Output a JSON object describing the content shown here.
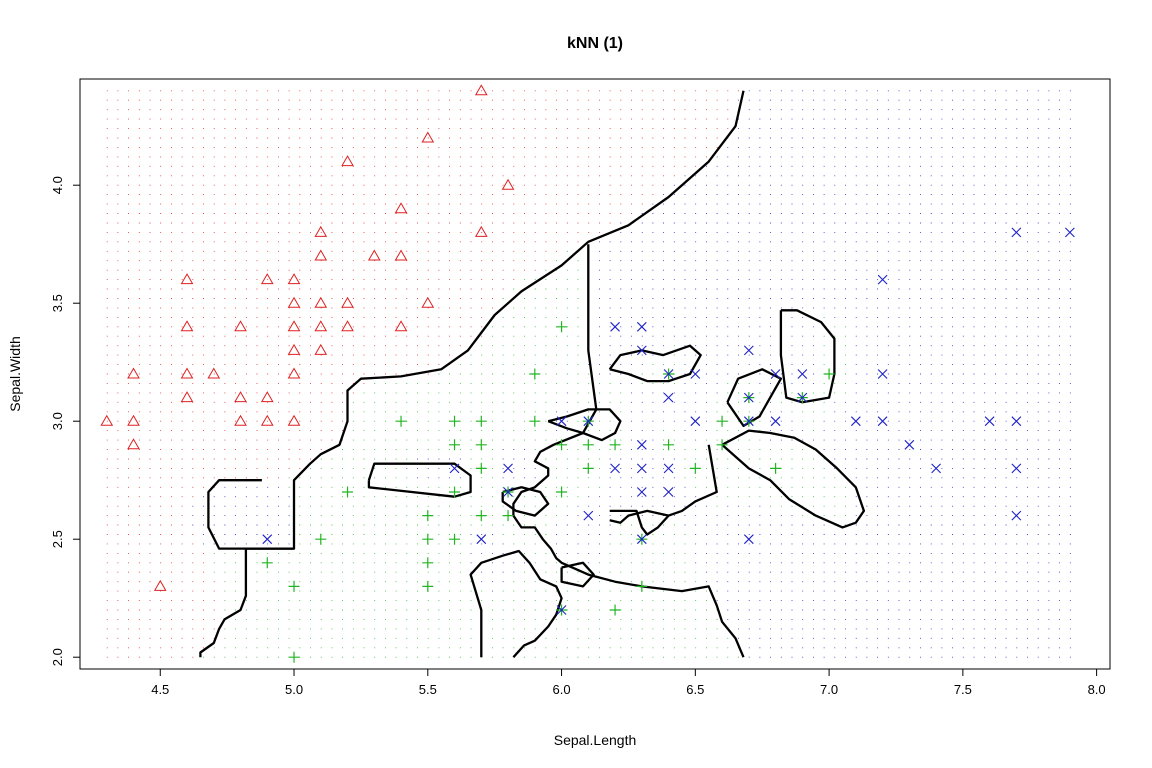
{
  "chart_data": {
    "type": "scatter",
    "title": "kNN (1)",
    "xlabel": "Sepal.Length",
    "ylabel": "Sepal.Width",
    "xlim": [
      4.2,
      8.05
    ],
    "ylim": [
      1.95,
      4.45
    ],
    "xticks": [
      "4.5",
      "5.0",
      "5.5",
      "6.0",
      "6.5",
      "7.0",
      "7.5",
      "8.0"
    ],
    "yticks": [
      "2.0",
      "2.5",
      "3.0",
      "3.5",
      "4.0"
    ],
    "grid": {
      "x": [
        4.3,
        7.9
      ],
      "y": [
        2.0,
        4.4
      ],
      "step": 0.04
    },
    "markers": {
      "triangle": {
        "color": "#DF2020"
      },
      "plus": {
        "color": "#22B522"
      },
      "cross": {
        "color": "#1F22C9"
      }
    },
    "series": [
      {
        "marker": "triangle",
        "points": [
          [
            4.3,
            3.0
          ],
          [
            4.4,
            2.9
          ],
          [
            4.4,
            3.0
          ],
          [
            4.4,
            3.2
          ],
          [
            4.5,
            2.3
          ],
          [
            4.6,
            3.1
          ],
          [
            4.6,
            3.2
          ],
          [
            4.6,
            3.4
          ],
          [
            4.6,
            3.6
          ],
          [
            4.7,
            3.2
          ],
          [
            4.8,
            3.0
          ],
          [
            4.8,
            3.1
          ],
          [
            4.8,
            3.4
          ],
          [
            4.9,
            3.0
          ],
          [
            4.9,
            3.1
          ],
          [
            4.9,
            3.6
          ],
          [
            5.0,
            3.0
          ],
          [
            5.0,
            3.2
          ],
          [
            5.0,
            3.3
          ],
          [
            5.0,
            3.4
          ],
          [
            5.0,
            3.5
          ],
          [
            5.0,
            3.6
          ],
          [
            5.1,
            3.3
          ],
          [
            5.1,
            3.4
          ],
          [
            5.1,
            3.5
          ],
          [
            5.1,
            3.7
          ],
          [
            5.1,
            3.8
          ],
          [
            5.2,
            3.4
          ],
          [
            5.2,
            3.5
          ],
          [
            5.2,
            4.1
          ],
          [
            5.3,
            3.7
          ],
          [
            5.4,
            3.4
          ],
          [
            5.4,
            3.7
          ],
          [
            5.4,
            3.9
          ],
          [
            5.5,
            3.5
          ],
          [
            5.5,
            4.2
          ],
          [
            5.7,
            3.8
          ],
          [
            5.7,
            4.4
          ],
          [
            5.8,
            4.0
          ]
        ]
      },
      {
        "marker": "plus",
        "points": [
          [
            4.9,
            2.4
          ],
          [
            5.0,
            2.0
          ],
          [
            5.0,
            2.3
          ],
          [
            5.1,
            2.5
          ],
          [
            5.2,
            2.7
          ],
          [
            5.4,
            3.0
          ],
          [
            5.5,
            2.3
          ],
          [
            5.5,
            2.4
          ],
          [
            5.5,
            2.5
          ],
          [
            5.5,
            2.6
          ],
          [
            5.6,
            2.5
          ],
          [
            5.6,
            2.7
          ],
          [
            5.6,
            2.9
          ],
          [
            5.6,
            3.0
          ],
          [
            5.7,
            2.6
          ],
          [
            5.7,
            2.8
          ],
          [
            5.7,
            2.9
          ],
          [
            5.7,
            3.0
          ],
          [
            5.8,
            2.6
          ],
          [
            5.8,
            2.7
          ],
          [
            5.9,
            3.0
          ],
          [
            5.9,
            3.2
          ],
          [
            6.0,
            2.2
          ],
          [
            6.0,
            2.7
          ],
          [
            6.0,
            2.9
          ],
          [
            6.0,
            3.4
          ],
          [
            6.1,
            2.8
          ],
          [
            6.1,
            2.9
          ],
          [
            6.1,
            3.0
          ],
          [
            6.2,
            2.2
          ],
          [
            6.2,
            2.9
          ],
          [
            6.3,
            2.3
          ],
          [
            6.3,
            2.5
          ],
          [
            6.4,
            2.9
          ],
          [
            6.4,
            3.2
          ],
          [
            6.5,
            2.8
          ],
          [
            6.6,
            2.9
          ],
          [
            6.6,
            3.0
          ],
          [
            6.7,
            3.0
          ],
          [
            6.7,
            3.1
          ],
          [
            6.8,
            2.8
          ],
          [
            6.9,
            3.1
          ],
          [
            7.0,
            3.2
          ]
        ]
      },
      {
        "marker": "cross",
        "points": [
          [
            4.9,
            2.5
          ],
          [
            5.6,
            2.8
          ],
          [
            5.7,
            2.5
          ],
          [
            5.8,
            2.7
          ],
          [
            5.8,
            2.8
          ],
          [
            6.0,
            2.2
          ],
          [
            6.0,
            3.0
          ],
          [
            6.1,
            2.6
          ],
          [
            6.1,
            3.0
          ],
          [
            6.2,
            2.8
          ],
          [
            6.2,
            3.4
          ],
          [
            6.3,
            2.5
          ],
          [
            6.3,
            2.7
          ],
          [
            6.3,
            2.8
          ],
          [
            6.3,
            2.9
          ],
          [
            6.3,
            3.3
          ],
          [
            6.3,
            3.4
          ],
          [
            6.4,
            2.7
          ],
          [
            6.4,
            2.8
          ],
          [
            6.4,
            3.1
          ],
          [
            6.4,
            3.2
          ],
          [
            6.5,
            3.0
          ],
          [
            6.5,
            3.2
          ],
          [
            6.7,
            2.5
          ],
          [
            6.7,
            3.0
          ],
          [
            6.7,
            3.1
          ],
          [
            6.7,
            3.3
          ],
          [
            6.8,
            3.0
          ],
          [
            6.8,
            3.2
          ],
          [
            6.9,
            3.1
          ],
          [
            6.9,
            3.2
          ],
          [
            7.1,
            3.0
          ],
          [
            7.2,
            3.0
          ],
          [
            7.2,
            3.2
          ],
          [
            7.2,
            3.6
          ],
          [
            7.3,
            2.9
          ],
          [
            7.4,
            2.8
          ],
          [
            7.6,
            3.0
          ],
          [
            7.7,
            2.6
          ],
          [
            7.7,
            2.8
          ],
          [
            7.7,
            3.0
          ],
          [
            7.7,
            3.8
          ],
          [
            7.9,
            3.8
          ]
        ]
      }
    ],
    "boundaries": [
      [
        [
          4.65,
          2.0
        ],
        [
          4.65,
          2.02
        ],
        [
          4.7,
          2.06
        ],
        [
          4.72,
          2.12
        ],
        [
          4.74,
          2.16
        ],
        [
          4.8,
          2.2
        ],
        [
          4.82,
          2.26
        ],
        [
          4.82,
          2.46
        ],
        [
          5.0,
          2.46
        ],
        [
          5.0,
          2.75
        ],
        [
          5.06,
          2.82
        ],
        [
          5.1,
          2.86
        ],
        [
          5.17,
          2.9
        ],
        [
          5.2,
          3.0
        ],
        [
          5.2,
          3.13
        ],
        [
          5.25,
          3.18
        ],
        [
          5.4,
          3.19
        ],
        [
          5.55,
          3.22
        ],
        [
          5.65,
          3.3
        ],
        [
          5.75,
          3.45
        ],
        [
          5.85,
          3.55
        ],
        [
          6.0,
          3.66
        ],
        [
          6.1,
          3.76
        ],
        [
          6.25,
          3.83
        ],
        [
          6.4,
          3.95
        ],
        [
          6.55,
          4.1
        ],
        [
          6.65,
          4.25
        ],
        [
          6.68,
          4.4
        ]
      ],
      [
        [
          4.88,
          2.75
        ],
        [
          4.72,
          2.75
        ],
        [
          4.68,
          2.7
        ],
        [
          4.68,
          2.55
        ],
        [
          4.72,
          2.46
        ],
        [
          5.0,
          2.46
        ]
      ],
      [
        [
          5.28,
          2.75
        ],
        [
          5.3,
          2.82
        ],
        [
          5.6,
          2.82
        ],
        [
          5.66,
          2.77
        ],
        [
          5.66,
          2.7
        ],
        [
          5.6,
          2.68
        ],
        [
          5.28,
          2.72
        ],
        [
          5.28,
          2.75
        ]
      ],
      [
        [
          6.1,
          3.75
        ],
        [
          6.1,
          3.3
        ],
        [
          6.13,
          3.05
        ],
        [
          6.08,
          2.95
        ],
        [
          5.97,
          2.9
        ],
        [
          5.92,
          2.87
        ],
        [
          5.9,
          2.83
        ],
        [
          5.95,
          2.8
        ],
        [
          5.95,
          2.77
        ],
        [
          5.9,
          2.72
        ],
        [
          5.85,
          2.7
        ],
        [
          5.82,
          2.65
        ],
        [
          5.82,
          2.6
        ],
        [
          5.85,
          2.55
        ],
        [
          5.9,
          2.55
        ],
        [
          5.93,
          2.5
        ],
        [
          5.96,
          2.46
        ],
        [
          5.98,
          2.42
        ],
        [
          6.0,
          2.4
        ],
        [
          6.1,
          2.35
        ],
        [
          6.2,
          2.32
        ],
        [
          6.3,
          2.3
        ],
        [
          6.45,
          2.28
        ],
        [
          6.55,
          2.3
        ],
        [
          6.58,
          2.22
        ],
        [
          6.6,
          2.15
        ],
        [
          6.65,
          2.08
        ],
        [
          6.68,
          2.0
        ]
      ],
      [
        [
          5.7,
          2.0
        ],
        [
          5.7,
          2.2
        ],
        [
          5.66,
          2.35
        ],
        [
          5.7,
          2.4
        ],
        [
          5.78,
          2.43
        ],
        [
          5.84,
          2.45
        ],
        [
          5.88,
          2.4
        ],
        [
          5.92,
          2.33
        ],
        [
          5.98,
          2.3
        ],
        [
          6.0,
          2.25
        ],
        [
          5.98,
          2.18
        ],
        [
          5.95,
          2.13
        ],
        [
          5.9,
          2.07
        ],
        [
          5.86,
          2.05
        ],
        [
          5.82,
          2.0
        ]
      ],
      [
        [
          6.18,
          3.22
        ],
        [
          6.22,
          3.28
        ],
        [
          6.3,
          3.3
        ],
        [
          6.38,
          3.28
        ],
        [
          6.48,
          3.32
        ],
        [
          6.52,
          3.28
        ],
        [
          6.48,
          3.2
        ],
        [
          6.4,
          3.17
        ],
        [
          6.32,
          3.17
        ],
        [
          6.25,
          3.2
        ],
        [
          6.18,
          3.22
        ]
      ],
      [
        [
          6.62,
          3.08
        ],
        [
          6.66,
          3.18
        ],
        [
          6.75,
          3.22
        ],
        [
          6.82,
          3.18
        ],
        [
          6.78,
          3.1
        ],
        [
          6.74,
          3.02
        ],
        [
          6.68,
          2.98
        ],
        [
          6.62,
          3.08
        ]
      ],
      [
        [
          6.82,
          3.47
        ],
        [
          6.82,
          3.28
        ],
        [
          6.84,
          3.1
        ],
        [
          6.9,
          3.08
        ],
        [
          7.0,
          3.1
        ],
        [
          7.02,
          3.2
        ],
        [
          7.02,
          3.35
        ],
        [
          6.97,
          3.42
        ],
        [
          6.88,
          3.47
        ],
        [
          6.82,
          3.47
        ]
      ],
      [
        [
          6.6,
          2.9
        ],
        [
          6.65,
          2.85
        ],
        [
          6.7,
          2.8
        ],
        [
          6.78,
          2.75
        ],
        [
          6.85,
          2.67
        ],
        [
          6.95,
          2.6
        ],
        [
          7.05,
          2.55
        ],
        [
          7.1,
          2.57
        ],
        [
          7.13,
          2.62
        ],
        [
          7.1,
          2.72
        ],
        [
          7.03,
          2.8
        ],
        [
          6.95,
          2.88
        ],
        [
          6.87,
          2.93
        ],
        [
          6.78,
          2.95
        ],
        [
          6.7,
          2.96
        ],
        [
          6.6,
          2.9
        ]
      ],
      [
        [
          6.55,
          2.9
        ],
        [
          6.58,
          2.7
        ],
        [
          6.5,
          2.66
        ],
        [
          6.45,
          2.62
        ],
        [
          6.4,
          2.6
        ],
        [
          6.32,
          2.62
        ],
        [
          6.25,
          2.6
        ],
        [
          6.22,
          2.57
        ],
        [
          6.18,
          2.58
        ]
      ],
      [
        [
          6.18,
          2.62
        ],
        [
          6.28,
          2.62
        ],
        [
          6.3,
          2.55
        ],
        [
          6.32,
          2.52
        ],
        [
          6.36,
          2.55
        ],
        [
          6.4,
          2.6
        ]
      ],
      [
        [
          5.95,
          3.0
        ],
        [
          6.02,
          3.02
        ],
        [
          6.1,
          3.05
        ],
        [
          6.18,
          3.05
        ],
        [
          6.22,
          3.0
        ],
        [
          6.2,
          2.95
        ],
        [
          6.15,
          2.92
        ],
        [
          6.08,
          2.95
        ],
        [
          6.02,
          2.97
        ],
        [
          5.95,
          3.0
        ]
      ],
      [
        [
          5.78,
          2.7
        ],
        [
          5.85,
          2.72
        ],
        [
          5.92,
          2.7
        ],
        [
          5.95,
          2.65
        ],
        [
          5.9,
          2.6
        ],
        [
          5.83,
          2.62
        ],
        [
          5.78,
          2.66
        ],
        [
          5.78,
          2.7
        ]
      ],
      [
        [
          6.0,
          2.38
        ],
        [
          6.08,
          2.4
        ],
        [
          6.12,
          2.35
        ],
        [
          6.08,
          2.3
        ],
        [
          6.0,
          2.32
        ],
        [
          6.0,
          2.38
        ]
      ]
    ]
  }
}
